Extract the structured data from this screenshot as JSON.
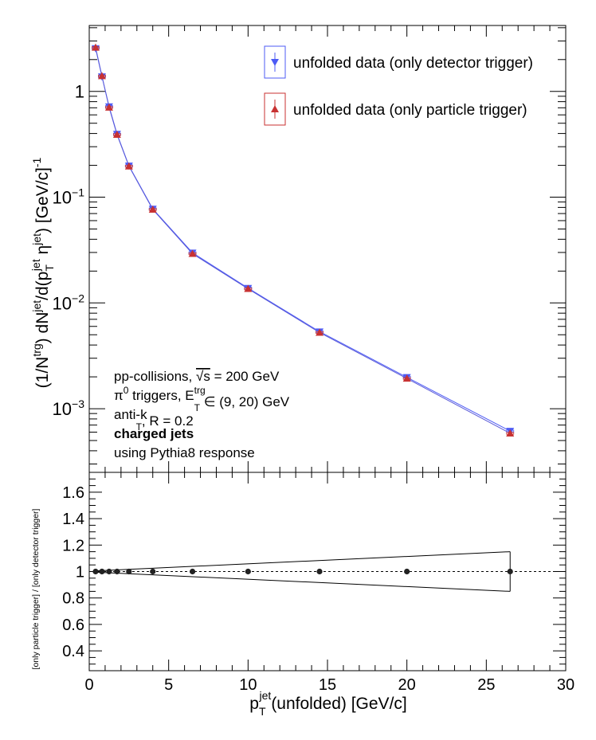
{
  "chart_data": [
    {
      "type": "scatter",
      "yscale": "log",
      "xlim": [
        0,
        30
      ],
      "ylim": [
        0.00025,
        4.2
      ],
      "ylabel": {
        "main": "(1/N",
        "sup1": "trg",
        "mid1": ") dN",
        "sup2": "jet",
        "mid2": "/d(p",
        "sub3": "T",
        "sup3": "jet",
        "mid3": " η",
        "sup4": "jet",
        "tail": ") [GeV/c]",
        "sup5": "-1"
      },
      "y_ticks": [
        {
          "value": 1,
          "label": "1"
        },
        {
          "value": 0.1,
          "mant": "10",
          "exp": "−1"
        },
        {
          "value": 0.01,
          "mant": "10",
          "exp": "−2"
        },
        {
          "value": 0.001,
          "mant": "10",
          "exp": "−3"
        }
      ],
      "legend_position": "top-right",
      "series": [
        {
          "name": "unfolded data (only detector trigger)",
          "color": "#4d5bf5",
          "marker": "triangle-down",
          "x": [
            0.4,
            0.8,
            1.25,
            1.75,
            2.5,
            4.0,
            6.5,
            10.0,
            14.5,
            20.0,
            26.5
          ],
          "y": [
            2.55,
            1.38,
            0.72,
            0.395,
            0.198,
            0.0775,
            0.0298,
            0.0138,
            0.00535,
            0.00198,
            0.000615
          ],
          "y_err": [
            0.06,
            0.03,
            0.02,
            0.01,
            0.005,
            0.002,
            0.0008,
            0.0004,
            0.00015,
            6e-05,
            3e-05
          ]
        },
        {
          "name": "unfolded data (only particle trigger)",
          "color": "#c83232",
          "marker": "triangle-up",
          "x": [
            0.4,
            0.8,
            1.25,
            1.75,
            2.5,
            4.0,
            6.5,
            10.0,
            14.5,
            20.0,
            26.5
          ],
          "y": [
            2.6,
            1.4,
            0.705,
            0.39,
            0.196,
            0.0765,
            0.0292,
            0.0136,
            0.00525,
            0.00193,
            0.000585
          ],
          "y_err": [
            0.06,
            0.03,
            0.02,
            0.01,
            0.005,
            0.002,
            0.0008,
            0.0004,
            0.00015,
            6e-05,
            3e-05
          ]
        }
      ],
      "annotations": [
        {
          "parts": [
            {
              "t": "pp-collisions, "
            },
            {
              "t": "√s",
              "style": "sqrt"
            },
            {
              "t": " = 200 GeV"
            }
          ]
        },
        {
          "parts": [
            {
              "t": "π"
            },
            {
              "t": "0",
              "style": "sup"
            },
            {
              "t": " triggers, E"
            },
            {
              "t": "trg",
              "style": "sup"
            },
            {
              "t": "T",
              "style": "sub"
            },
            {
              "t": " ∈ (9, 20) GeV"
            }
          ]
        },
        {
          "parts": [
            {
              "t": "anti-k"
            },
            {
              "t": "T",
              "style": "sub"
            },
            {
              "t": ", R = 0.2"
            }
          ]
        },
        {
          "parts": [
            {
              "t": "charged jets",
              "style": "bold"
            }
          ]
        },
        {
          "parts": [
            {
              "t": "using Pythia8 response"
            }
          ]
        }
      ]
    },
    {
      "type": "scatter",
      "xlim": [
        0,
        30
      ],
      "ylim": [
        0.25,
        1.75
      ],
      "x_ticks": [
        0,
        5,
        10,
        15,
        20,
        25,
        30
      ],
      "y_ticks": [
        0.4,
        0.6,
        0.8,
        1,
        1.2,
        1.4,
        1.6
      ],
      "xlabel": {
        "main": "p",
        "sub": "T",
        "sup": "jet",
        "tail": "(unfolded) [GeV/c]"
      },
      "ylabel": "[only particle trigger] / [only detector trigger]",
      "reference_line": 1.0,
      "ratio": {
        "color": "#222222",
        "x": [
          0.4,
          0.8,
          1.25,
          1.75,
          2.5,
          4.0,
          6.5,
          10.0,
          14.5,
          20.0,
          26.5
        ],
        "y": [
          1.0,
          1.0,
          1.0,
          1.0,
          1.0,
          1.0,
          1.0,
          1.0,
          1.0,
          1.0,
          1.0
        ]
      },
      "error_band": {
        "x": [
          0.4,
          26.5
        ],
        "upper": [
          1.005,
          1.15
        ],
        "lower": [
          0.995,
          0.85
        ]
      }
    }
  ]
}
